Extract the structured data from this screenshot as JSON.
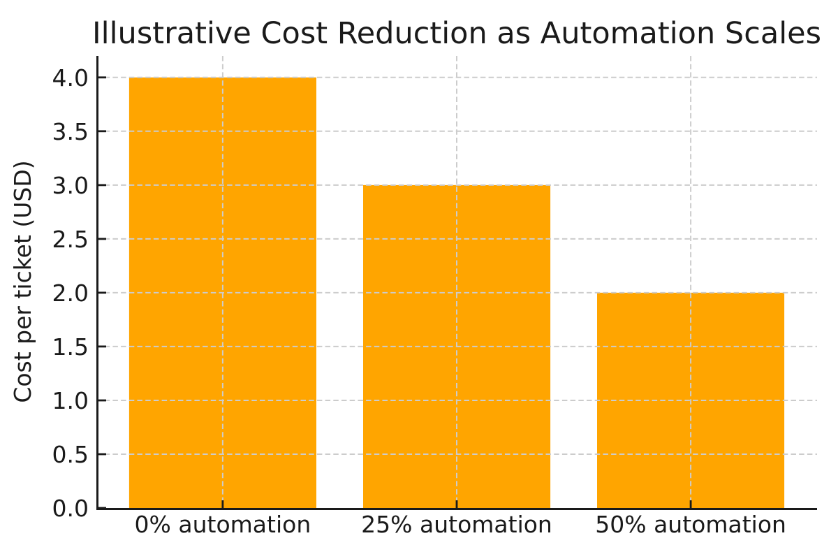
{
  "chart_data": {
    "type": "bar",
    "title": "Illustrative Cost Reduction as Automation Scales",
    "categories": [
      "0% automation",
      "25% automation",
      "50% automation"
    ],
    "values": [
      4.0,
      3.0,
      2.0
    ],
    "xlabel": "",
    "ylabel": "Cost per ticket (USD)",
    "ylim": [
      0,
      4.2
    ],
    "yticks": [
      0.0,
      0.5,
      1.0,
      1.5,
      2.0,
      2.5,
      3.0,
      3.5,
      4.0
    ],
    "ytick_labels": [
      "0.0",
      "0.5",
      "1.0",
      "1.5",
      "2.0",
      "2.5",
      "3.0",
      "3.5",
      "4.0"
    ],
    "bar_color": "#FFA500",
    "grid": {
      "visible": true,
      "which": "both",
      "line_style": "dashed",
      "color": "#cccccc",
      "above_bars": true
    },
    "spine_color": "#1a1a1a",
    "text_color": "#1a1a1a",
    "tick_direction": "in",
    "background_color": "#ffffff",
    "legend": null
  }
}
